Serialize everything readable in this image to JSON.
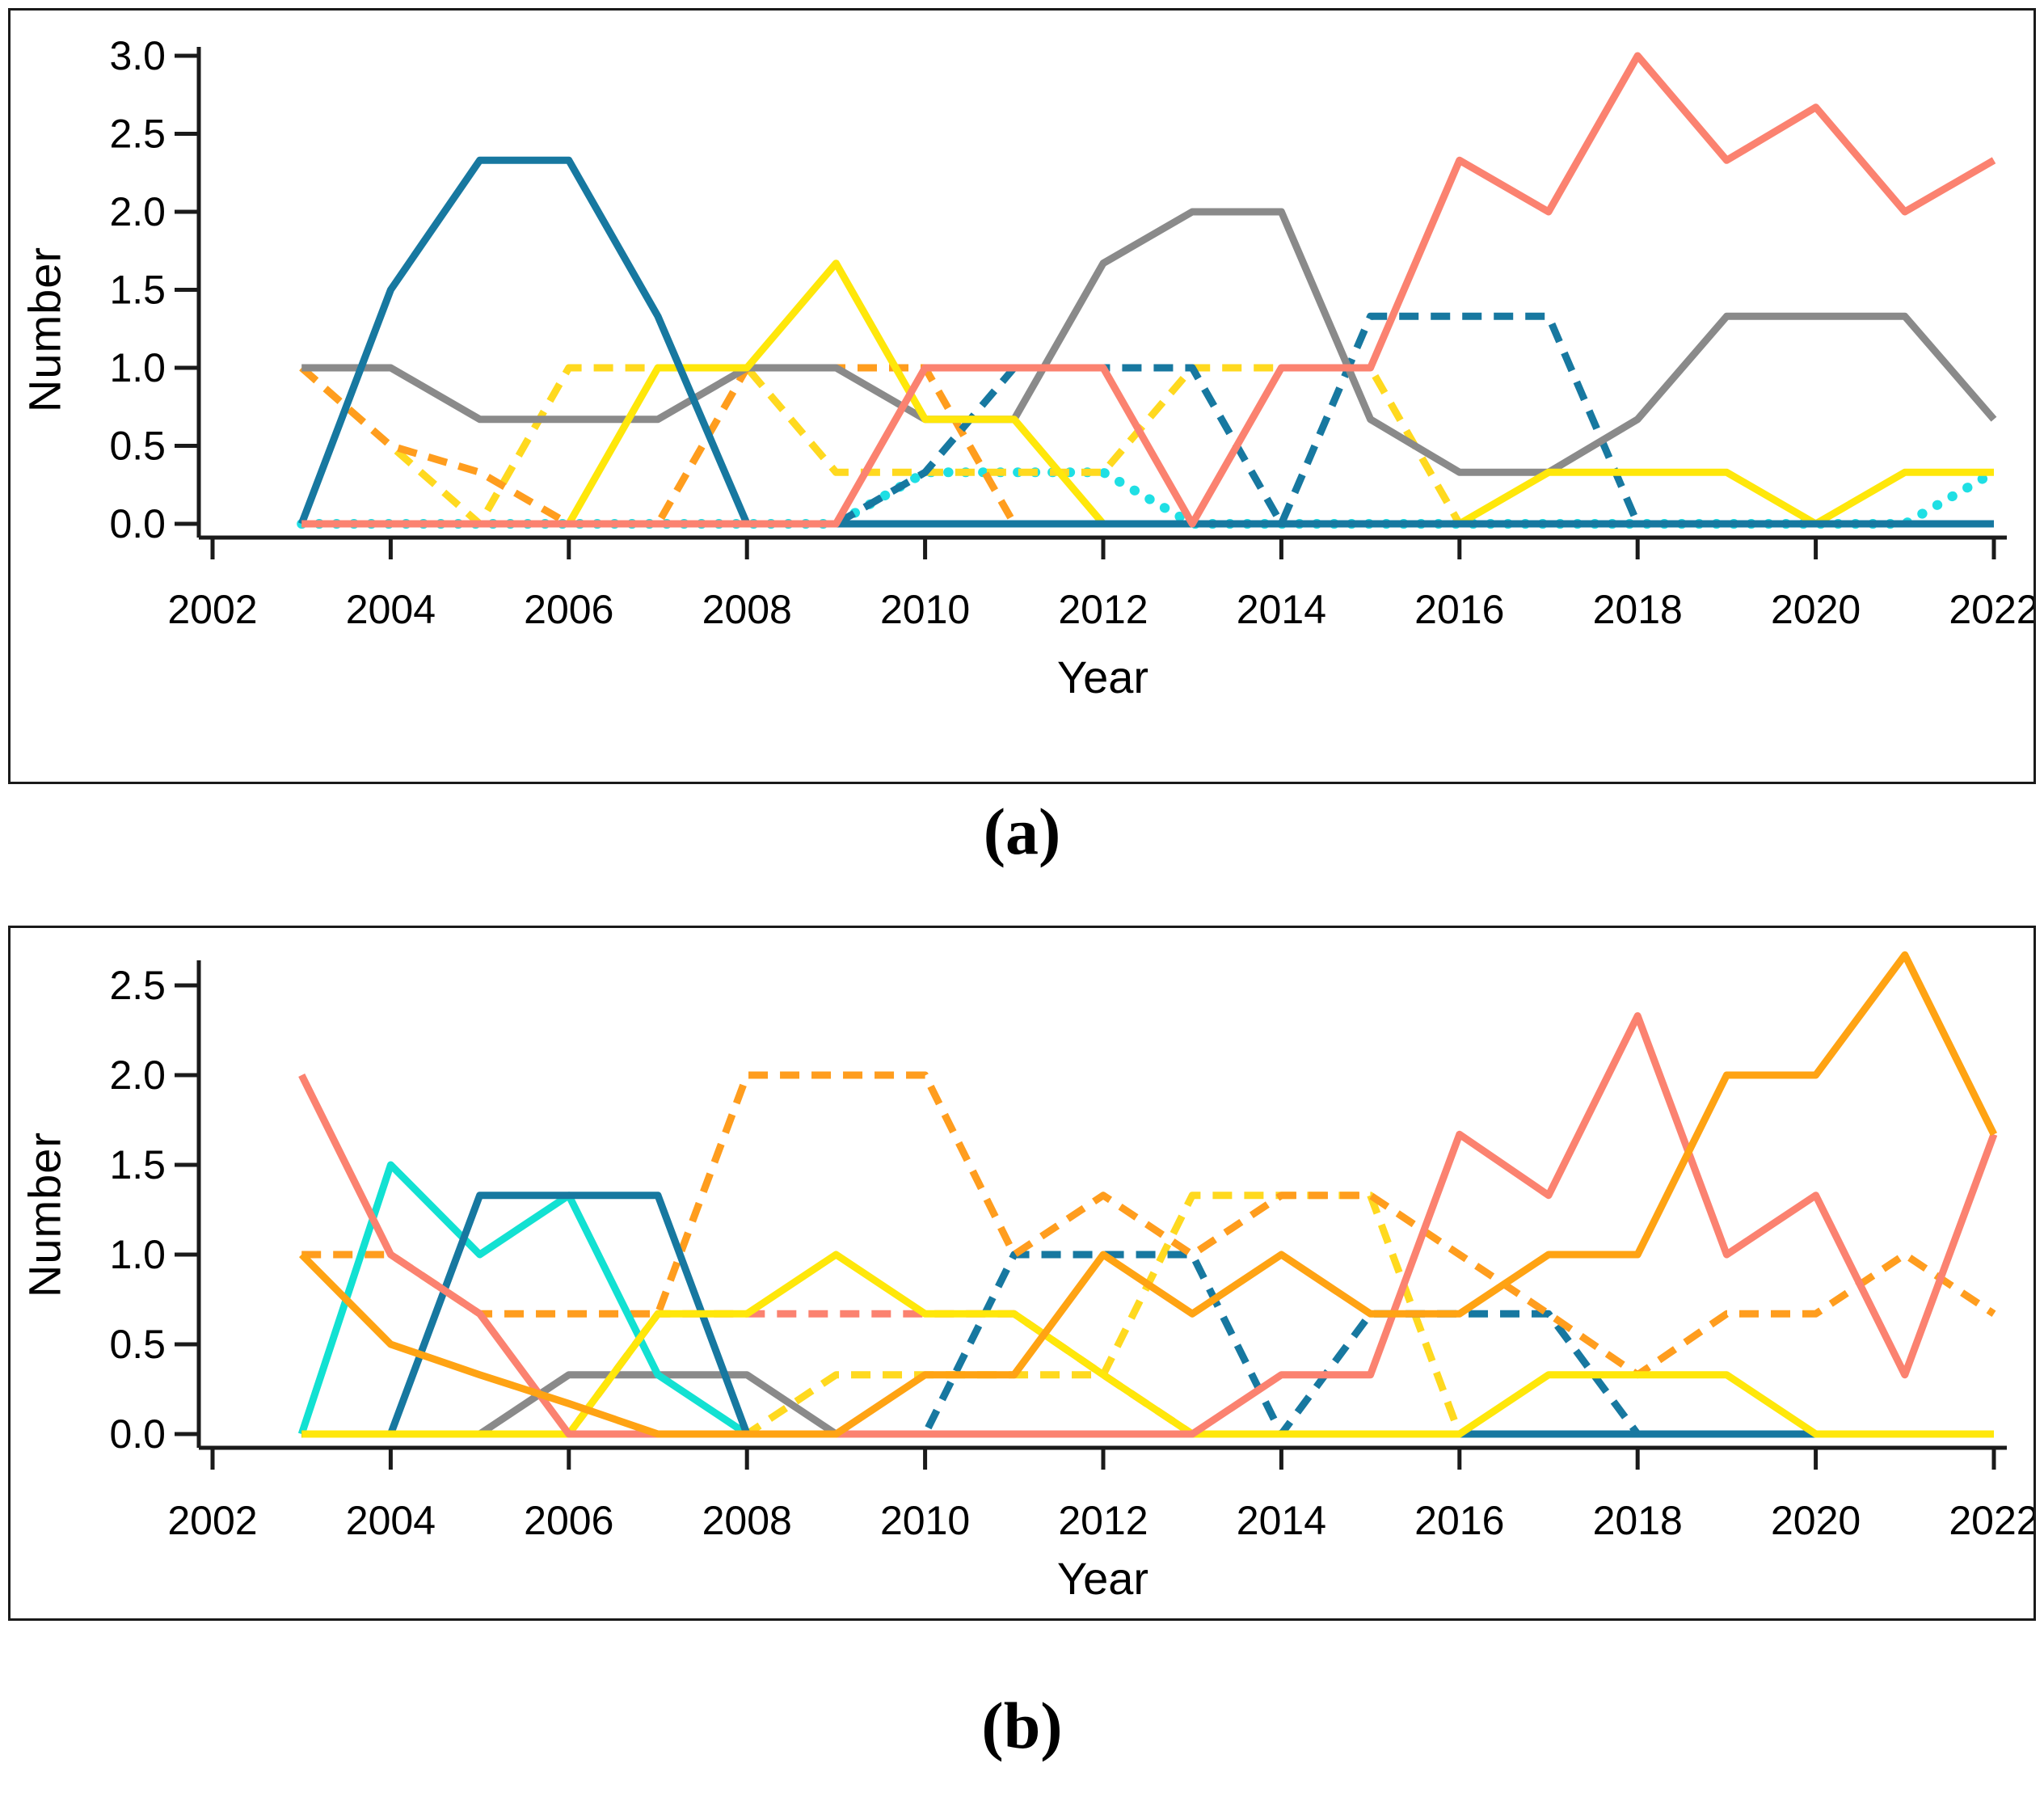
{
  "figure": {
    "background": "#ffffff",
    "panel_border_color": "#1a1a1a",
    "axis_color": "#1a1a1a"
  },
  "chart_data": [
    {
      "id": "a",
      "type": "line",
      "caption": "(a)",
      "xlabel": "Year",
      "ylabel": "Number",
      "x": [
        2003,
        2004,
        2005,
        2006,
        2007,
        2008,
        2009,
        2010,
        2011,
        2012,
        2013,
        2014,
        2015,
        2016,
        2017,
        2018,
        2019,
        2020,
        2021,
        2022
      ],
      "x_ticks": [
        2002,
        2004,
        2006,
        2008,
        2010,
        2012,
        2014,
        2016,
        2018,
        2020,
        2022
      ],
      "y_ticks": [
        0.0,
        0.5,
        1.0,
        1.5,
        2.0,
        2.5,
        3.0
      ],
      "xlim": [
        2002,
        2022
      ],
      "ylim": [
        0,
        3.0
      ],
      "grid": false,
      "legend_position": "none",
      "series": [
        {
          "name": "cyan-dotted",
          "color": "#1FDFE4",
          "style": "dotted",
          "values": [
            0,
            0,
            0,
            0,
            0,
            0,
            0,
            0.33,
            0.33,
            0.33,
            0,
            0,
            0,
            0,
            0,
            0,
            0,
            0,
            0,
            0.33
          ]
        },
        {
          "name": "yellow-dashed",
          "color": "#FFD91F",
          "style": "dashed",
          "values": [
            1,
            0.5,
            0,
            1,
            1,
            1,
            0.33,
            0.33,
            0.33,
            0.33,
            1,
            1,
            1,
            0,
            0,
            0,
            0,
            0,
            0,
            0
          ]
        },
        {
          "name": "orange-dashed",
          "color": "#FF9D1E",
          "style": "dashed",
          "values": [
            1,
            0.5,
            0.33,
            0,
            0,
            1,
            1,
            1,
            0,
            0,
            0,
            0,
            0,
            0,
            0,
            0,
            0,
            0,
            0,
            0
          ]
        },
        {
          "name": "blue-dashed",
          "color": "#1778A0",
          "style": "dashed",
          "values": [
            0,
            0,
            0,
            0,
            0,
            0,
            0,
            0.33,
            1,
            1,
            1,
            0,
            1.33,
            1.33,
            1.33,
            0,
            0,
            0,
            0,
            0
          ]
        },
        {
          "name": "gray-solid",
          "color": "#8A8A8A",
          "style": "solid",
          "values": [
            1,
            1,
            0.67,
            0.67,
            0.67,
            1,
            1,
            0.67,
            0.67,
            1.67,
            2,
            2,
            0.67,
            0.33,
            0.33,
            0.67,
            1.33,
            1.33,
            1.33,
            0.67
          ]
        },
        {
          "name": "yellow-solid",
          "color": "#FFE70A",
          "style": "solid",
          "values": [
            0,
            0,
            0,
            0,
            1,
            1,
            1.67,
            0.67,
            0.67,
            0,
            0,
            0,
            0,
            0,
            0.33,
            0.33,
            0.33,
            0,
            0.33,
            0.33
          ]
        },
        {
          "name": "blue-solid",
          "color": "#1778A0",
          "style": "solid",
          "values": [
            0,
            1.5,
            2.33,
            2.33,
            1.33,
            0,
            0,
            0,
            0,
            0,
            0,
            0,
            0,
            0,
            0,
            0,
            0,
            0,
            0,
            0
          ]
        },
        {
          "name": "salmon-solid",
          "color": "#FB8270",
          "style": "solid",
          "values": [
            0,
            0,
            0,
            0,
            0,
            0,
            0,
            1,
            1,
            1,
            0,
            1,
            1,
            2.33,
            2,
            3,
            2.33,
            2.67,
            2,
            2.33
          ]
        }
      ]
    },
    {
      "id": "b",
      "type": "line",
      "caption": "(b)",
      "xlabel": "Year",
      "ylabel": "Number",
      "x": [
        2003,
        2004,
        2005,
        2006,
        2007,
        2008,
        2009,
        2010,
        2011,
        2012,
        2013,
        2014,
        2015,
        2016,
        2017,
        2018,
        2019,
        2020,
        2021,
        2022
      ],
      "x_ticks": [
        2002,
        2004,
        2006,
        2008,
        2010,
        2012,
        2014,
        2016,
        2018,
        2020,
        2022
      ],
      "y_ticks": [
        0.0,
        0.5,
        1.0,
        1.5,
        2.0,
        2.5
      ],
      "xlim": [
        2002,
        2022
      ],
      "ylim": [
        0,
        2.5
      ],
      "grid": false,
      "legend_position": "none",
      "series": [
        {
          "name": "gray-solid",
          "color": "#8A8A8A",
          "style": "solid",
          "values": [
            0,
            0,
            0,
            0.33,
            0.33,
            0.33,
            0,
            0,
            0,
            0,
            0,
            0,
            0,
            0,
            0,
            0,
            0,
            0,
            0,
            0
          ]
        },
        {
          "name": "salmon-dashed",
          "color": "#FB8270",
          "style": "dashed",
          "values": [
            0,
            0,
            0,
            0,
            0.67,
            0.67,
            0.67,
            0.67,
            0.67,
            0.33,
            0,
            0,
            0,
            0,
            0,
            0,
            0,
            0,
            0,
            0
          ]
        },
        {
          "name": "yellow-dashed",
          "color": "#FFD91F",
          "style": "dashed",
          "values": [
            0,
            0,
            0,
            0,
            0,
            0,
            0.33,
            0.33,
            0.33,
            0.33,
            1.33,
            1.33,
            1.33,
            0,
            0,
            0,
            0,
            0,
            0,
            0
          ]
        },
        {
          "name": "blue-dashed",
          "color": "#1778A0",
          "style": "dashed",
          "values": [
            0,
            0,
            0,
            0,
            0,
            0,
            0,
            0,
            1,
            1,
            1,
            0,
            0.67,
            0.67,
            0.67,
            0,
            0,
            0,
            0,
            0
          ]
        },
        {
          "name": "orange-dashed",
          "color": "#FF9D1E",
          "style": "dashed",
          "values": [
            1,
            1,
            0.67,
            0.67,
            0.67,
            2,
            2,
            2,
            1,
            1.33,
            1,
            1.33,
            1.33,
            1,
            0.67,
            0.33,
            0.67,
            0.67,
            1,
            0.67
          ]
        },
        {
          "name": "cyan-solid",
          "color": "#12E1D2",
          "style": "solid",
          "values": [
            0,
            1.5,
            1,
            1.33,
            0.33,
            0,
            0,
            0,
            0,
            0,
            0,
            0,
            0,
            0,
            0,
            0,
            0,
            0,
            0,
            0
          ]
        },
        {
          "name": "blue-solid",
          "color": "#1778A0",
          "style": "solid",
          "values": [
            0,
            0,
            1.33,
            1.33,
            1.33,
            0,
            0,
            0,
            0,
            0,
            0,
            0,
            0,
            0,
            0,
            0,
            0,
            0,
            0,
            0
          ]
        },
        {
          "name": "yellow-solid",
          "color": "#FFE70A",
          "style": "solid",
          "values": [
            0,
            0,
            0,
            0,
            0.67,
            0.67,
            1,
            0.67,
            0.67,
            0.33,
            0,
            0,
            0,
            0,
            0.33,
            0.33,
            0.33,
            0,
            0,
            0
          ]
        },
        {
          "name": "salmon-solid",
          "color": "#FB8270",
          "style": "solid",
          "values": [
            2,
            1,
            0.67,
            0,
            0,
            0,
            0,
            0,
            0,
            0,
            0,
            0.33,
            0.33,
            1.67,
            1.33,
            2.33,
            1,
            1.33,
            0.33,
            1.67
          ]
        },
        {
          "name": "orange-solid",
          "color": "#FFA313",
          "style": "solid",
          "values": [
            1,
            0.5,
            0.33,
            0.17,
            0,
            0,
            0,
            0.33,
            0.33,
            1,
            0.67,
            1,
            0.67,
            0.67,
            1,
            1,
            2,
            2,
            2.67,
            1.67
          ]
        }
      ]
    }
  ]
}
